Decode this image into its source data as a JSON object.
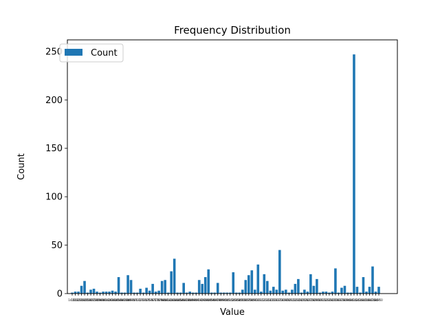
{
  "chart_data": {
    "type": "bar",
    "title": "Frequency Distribution",
    "xlabel": "Value",
    "ylabel": "Count",
    "ylim": [
      0,
      262
    ],
    "yticks": [
      0,
      50,
      100,
      150,
      200,
      250
    ],
    "legend": {
      "entries": [
        "Count"
      ],
      "placement": "top-left"
    },
    "grid": false,
    "bar_color": "#1f77b4",
    "categories": [
      "14.51",
      "14.52",
      "14.53",
      "14.54",
      "14.55",
      "14.56",
      "14.57",
      "14.58",
      "14.59",
      "14.60",
      "14.61",
      "14.62",
      "14.63",
      "14.64",
      "14.65",
      "14.66",
      "14.67",
      "14.68",
      "14.69",
      "14.70",
      "14.71",
      "14.72",
      "14.73",
      "14.74",
      "14.75",
      "14.76",
      "14.77",
      "14.78",
      "14.79",
      "14.80",
      "14.81",
      "14.82",
      "14.83",
      "14.84",
      "14.85",
      "14.86",
      "14.87",
      "14.88",
      "14.89",
      "14.90",
      "14.91",
      "14.92",
      "14.93",
      "14.94",
      "14.95",
      "14.96",
      "14.97",
      "14.98",
      "14.99",
      "15.00",
      "15.01",
      "15.02",
      "15.03",
      "15.04",
      "15.05",
      "15.06",
      "15.07",
      "15.08",
      "15.09",
      "15.10",
      "15.11",
      "15.12",
      "15.13",
      "15.14",
      "15.15",
      "15.16",
      "15.17",
      "15.18",
      "15.19",
      "15.20",
      "15.21",
      "15.22",
      "15.23",
      "15.24",
      "15.25",
      "15.26",
      "15.27",
      "15.28",
      "15.29",
      "15.30",
      "15.31",
      "15.32",
      "15.33",
      "15.34",
      "15.35",
      "15.36",
      "15.37",
      "15.38",
      "15.39",
      "15.40",
      "15.41",
      "15.42",
      "15.43",
      "15.44",
      "15.45",
      "15.46",
      "15.47",
      "15.48",
      "15.49",
      "15.50"
    ],
    "series": [
      {
        "name": "Count",
        "values": [
          1,
          2,
          2,
          8,
          13,
          1,
          4,
          5,
          2,
          1,
          2,
          2,
          2,
          3,
          2,
          17,
          1,
          1,
          19,
          14,
          1,
          1,
          5,
          1,
          6,
          3,
          10,
          2,
          3,
          13,
          14,
          1,
          23,
          36,
          1,
          1,
          11,
          1,
          2,
          1,
          1,
          14,
          10,
          17,
          25,
          1,
          1,
          11,
          1,
          1,
          1,
          1,
          22,
          1,
          1,
          4,
          14,
          19,
          24,
          4,
          30,
          2,
          20,
          13,
          3,
          7,
          4,
          45,
          3,
          4,
          1,
          4,
          10,
          15,
          1,
          4,
          2,
          20,
          8,
          15,
          1,
          2,
          2,
          1,
          2,
          26,
          1,
          6,
          8,
          1,
          1,
          247,
          7,
          1,
          17,
          2,
          7,
          28,
          2,
          7
        ]
      }
    ]
  }
}
